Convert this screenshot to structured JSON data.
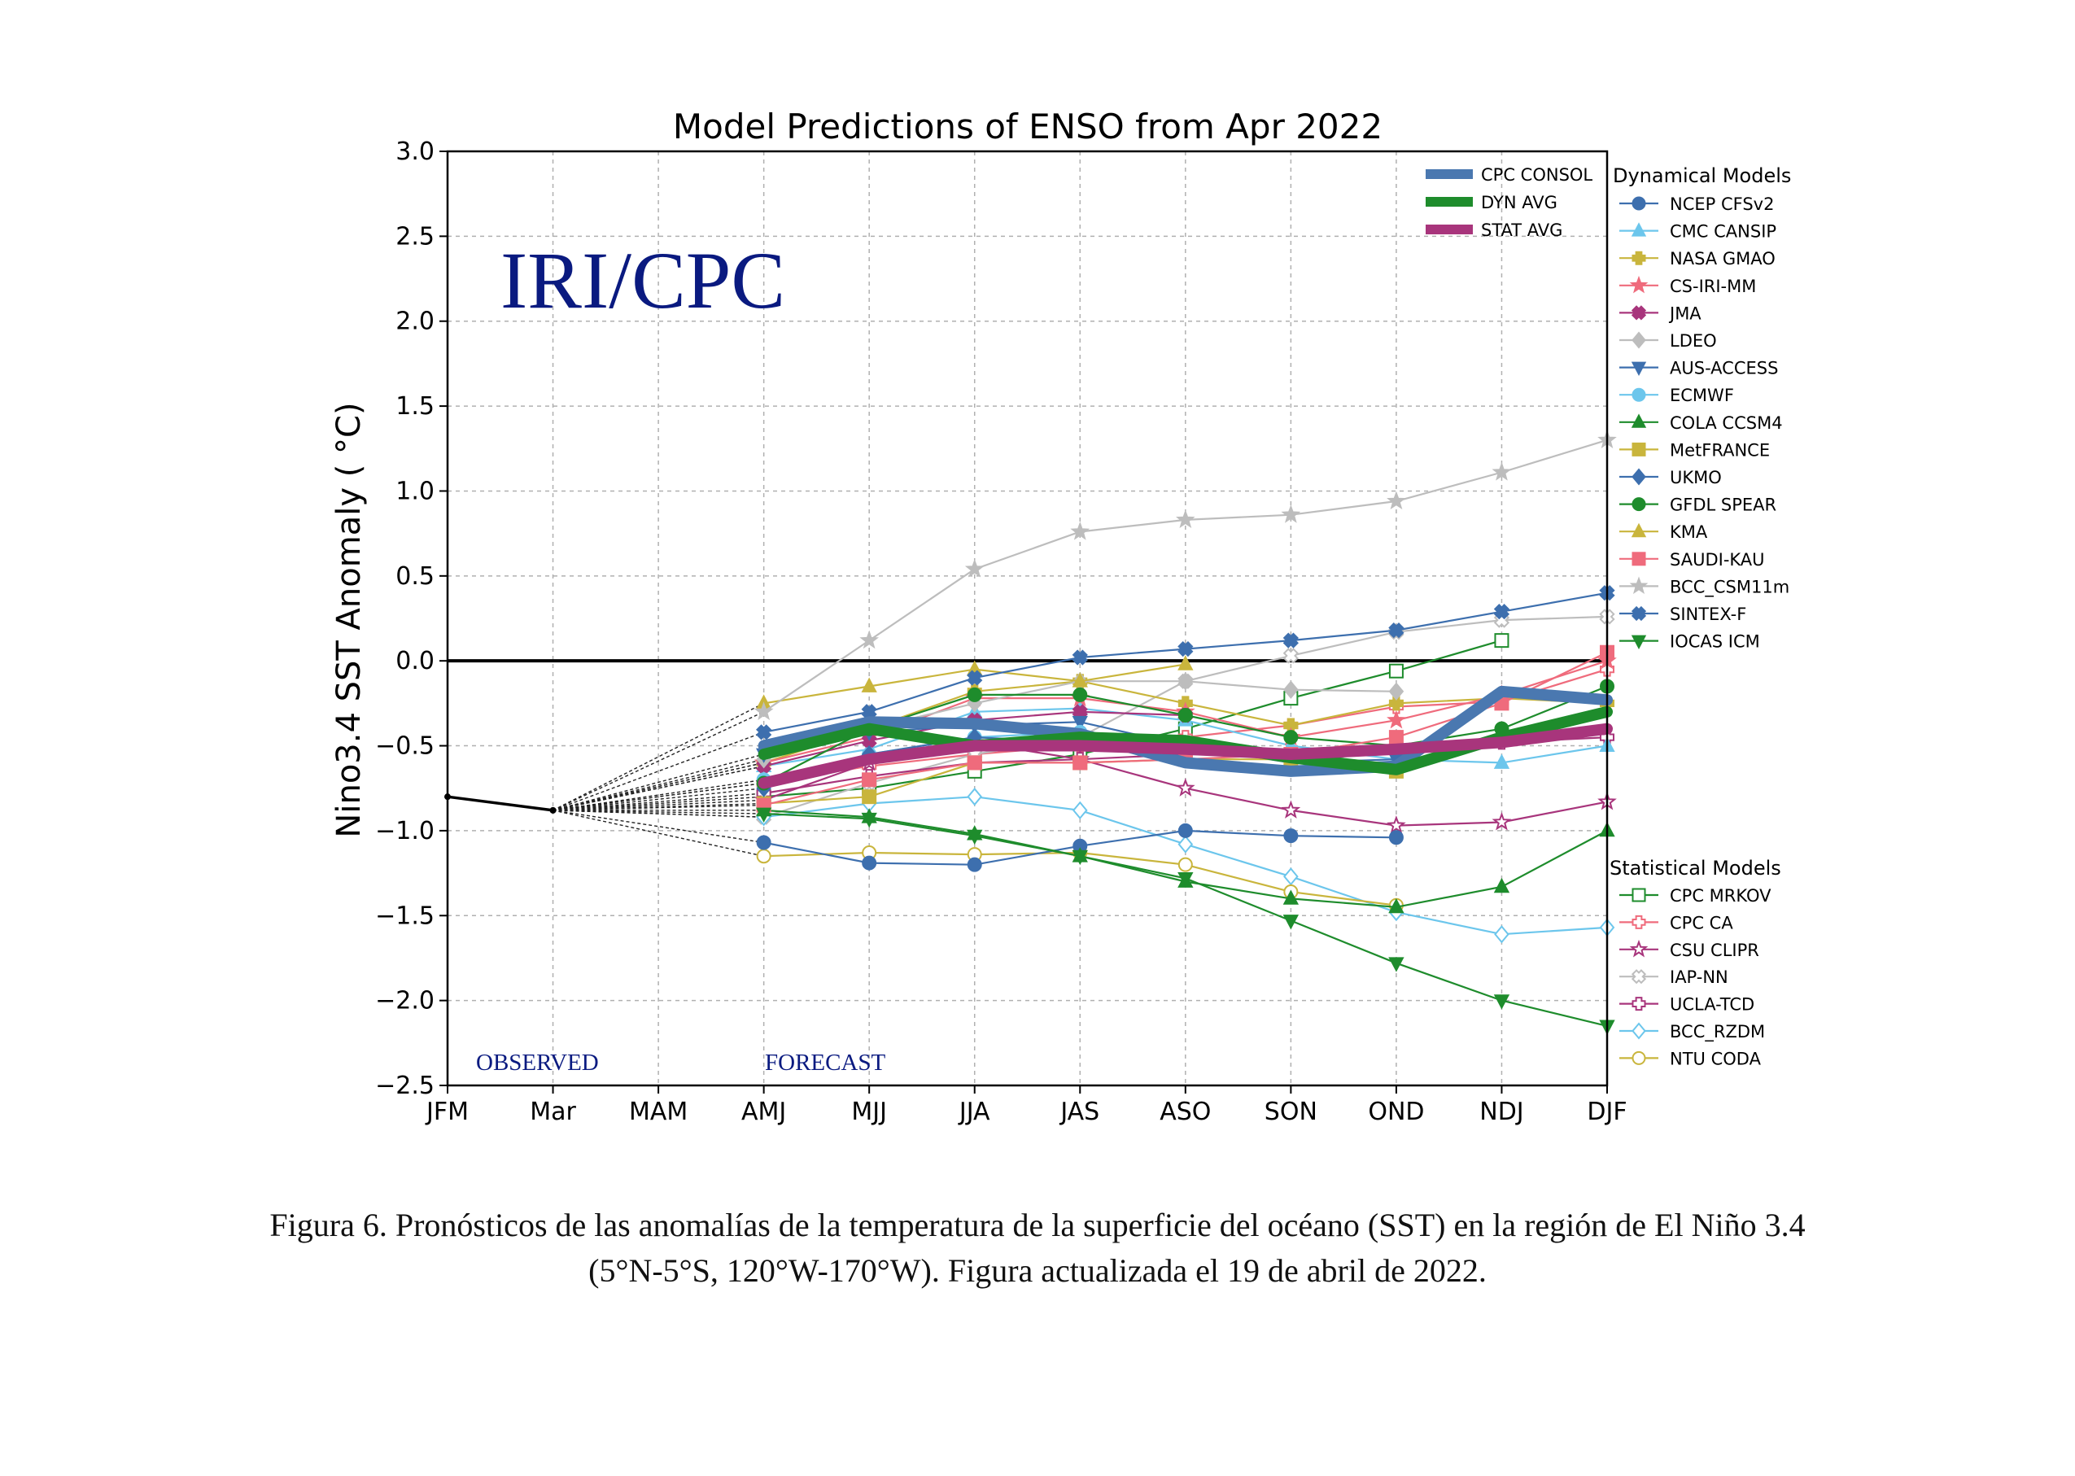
{
  "chart_data": {
    "type": "line",
    "title": "Model Predictions of ENSO from Apr 2022",
    "xlabel": "",
    "ylabel": "Nino3.4 SST Anomaly ( °C)",
    "ylim": [
      -2.5,
      3.0
    ],
    "yticks": [
      "3.0",
      "2.5",
      "2.0",
      "1.5",
      "1.0",
      "0.5",
      "0.0",
      "−0.5",
      "−1.0",
      "−1.5",
      "−2.0",
      "−2.5"
    ],
    "categories": [
      "JFM",
      "Mar",
      "MAM",
      "AMJ",
      "MJJ",
      "JJA",
      "JAS",
      "ASO",
      "SON",
      "OND",
      "NDJ",
      "DJF"
    ],
    "grid": true,
    "watermark": "IRI/CPC",
    "observed_label": "OBSERVED",
    "forecast_label": "FORECAST",
    "observed": [
      -0.8,
      -0.88
    ],
    "averages": [
      {
        "name": "CPC CONSOL",
        "color": "#4a78b0",
        "values": [
          -0.5,
          -0.36,
          -0.37,
          -0.43,
          -0.6,
          -0.65,
          -0.62,
          -0.18,
          -0.23
        ]
      },
      {
        "name": "DYN AVG",
        "color": "#1e8c2c",
        "values": [
          -0.55,
          -0.4,
          -0.5,
          -0.45,
          -0.47,
          -0.57,
          -0.64,
          -0.45,
          -0.3
        ]
      },
      {
        "name": "STAT AVG",
        "color": "#a8357c",
        "values": [
          -0.72,
          -0.58,
          -0.5,
          -0.5,
          -0.52,
          -0.55,
          -0.52,
          -0.48,
          -0.4
        ]
      }
    ],
    "dynamical_title": "Dynamical Models",
    "dynamical": [
      {
        "name": "NCEP CFSv2",
        "color": "#3d6fae",
        "marker": "circle",
        "values": [
          -1.07,
          -1.19,
          -1.2,
          -1.09,
          -1.0,
          -1.03,
          -1.04
        ]
      },
      {
        "name": "CMC CANSIP",
        "color": "#6cc6ec",
        "marker": "triangle-up",
        "values": [
          -0.62,
          -0.52,
          -0.3,
          -0.28,
          -0.35,
          -0.5,
          -0.58,
          -0.6,
          -0.5
        ]
      },
      {
        "name": "NASA GMAO",
        "color": "#c9b53c",
        "marker": "plus",
        "values": [
          -0.6,
          -0.4,
          -0.18,
          -0.12,
          -0.25,
          -0.38,
          -0.25,
          -0.22,
          -0.25
        ]
      },
      {
        "name": "CS-IRI-MM",
        "color": "#ef6b7c",
        "marker": "star",
        "values": [
          -0.6,
          -0.45,
          -0.22,
          -0.22,
          -0.3,
          -0.45,
          -0.35,
          -0.2,
          0.0
        ]
      },
      {
        "name": "JMA",
        "color": "#a8357c",
        "marker": "x",
        "values": [
          -0.62,
          -0.47,
          -0.35,
          -0.3,
          -0.32
        ]
      },
      {
        "name": "LDEO",
        "color": "#bdbdbd",
        "marker": "diamond",
        "values": [
          -0.58,
          -0.4,
          -0.25,
          -0.12,
          -0.12,
          -0.17,
          -0.18
        ]
      },
      {
        "name": "AUS-ACCESS",
        "color": "#3d6fae",
        "marker": "triangle-down",
        "values": [
          -0.55,
          -0.42,
          -0.38,
          -0.36,
          -0.5,
          -0.6,
          -0.58
        ]
      },
      {
        "name": "ECMWF",
        "color": "#6cc6ec",
        "marker": "circle",
        "values": [
          -0.7,
          -0.55,
          -0.45,
          -0.42,
          -0.48
        ]
      },
      {
        "name": "COLA CCSM4",
        "color": "#1e8c2c",
        "marker": "triangle-up",
        "values": [
          -0.88,
          -0.92,
          -1.02,
          -1.15,
          -1.3,
          -1.4,
          -1.45,
          -1.33,
          -1.0
        ]
      },
      {
        "name": "MetFRANCE",
        "color": "#c9b53c",
        "marker": "square",
        "values": [
          -0.84,
          -0.8,
          -0.6,
          -0.6,
          -0.58,
          -0.58,
          -0.65
        ]
      },
      {
        "name": "UKMO",
        "color": "#3d6fae",
        "marker": "diamond",
        "values": [
          -0.75,
          -0.55,
          -0.45,
          -0.48,
          -0.58
        ]
      },
      {
        "name": "GFDL SPEAR",
        "color": "#1e8c2c",
        "marker": "circle",
        "values": [
          -0.72,
          -0.4,
          -0.2,
          -0.2,
          -0.32,
          -0.45,
          -0.5,
          -0.4,
          -0.15
        ]
      },
      {
        "name": "KMA",
        "color": "#c9b53c",
        "marker": "triangle-up",
        "values": [
          -0.25,
          -0.15,
          -0.05,
          -0.12,
          -0.02
        ]
      },
      {
        "name": "SAUDI-KAU",
        "color": "#ef6b7c",
        "marker": "square",
        "values": [
          -0.85,
          -0.7,
          -0.6,
          -0.6,
          -0.58,
          -0.55,
          -0.45,
          -0.25,
          0.05
        ]
      },
      {
        "name": "BCC_CSM11m",
        "color": "#bdbdbd",
        "marker": "star",
        "values": [
          -0.3,
          0.12,
          0.54,
          0.76,
          0.83,
          0.86,
          0.94,
          1.11,
          1.3
        ]
      },
      {
        "name": "SINTEX-F",
        "color": "#3d6fae",
        "marker": "x",
        "values": [
          -0.42,
          -0.3,
          -0.1,
          0.02,
          0.07,
          0.12,
          0.18,
          0.29,
          0.4
        ]
      },
      {
        "name": "IOCAS ICM",
        "color": "#1e8c2c",
        "marker": "triangle-down",
        "values": [
          -0.9,
          -0.93,
          -1.03,
          -1.15,
          -1.28,
          -1.53,
          -1.78,
          -2.0,
          -2.15
        ]
      }
    ],
    "statistical_title": "Statistical Models",
    "statistical": [
      {
        "name": "CPC MRKOV",
        "color": "#1e8c2c",
        "marker": "open-square",
        "values": [
          -0.8,
          -0.75,
          -0.65,
          -0.55,
          -0.4,
          -0.22,
          -0.06,
          0.12
        ]
      },
      {
        "name": "CPC CA",
        "color": "#ef6b7c",
        "marker": "open-plus",
        "values": [
          -0.72,
          -0.62,
          -0.55,
          -0.5,
          -0.45,
          -0.38,
          -0.27,
          -0.24,
          -0.05
        ]
      },
      {
        "name": "CSU CLIPR",
        "color": "#a8357c",
        "marker": "open-star",
        "values": [
          -0.82,
          -0.6,
          -0.48,
          -0.58,
          -0.75,
          -0.88,
          -0.97,
          -0.95,
          -0.83
        ]
      },
      {
        "name": "IAP-NN",
        "color": "#bdbdbd",
        "marker": "open-x",
        "values": [
          -0.92,
          -0.72,
          -0.55,
          -0.45,
          -0.12,
          0.03,
          0.17,
          0.24,
          0.26
        ]
      },
      {
        "name": "UCLA-TCD",
        "color": "#a8357c",
        "marker": "open-plus",
        "values": [
          -0.78,
          -0.68,
          -0.6,
          -0.58,
          -0.55,
          -0.55,
          -0.52,
          -0.48,
          -0.45
        ]
      },
      {
        "name": "BCC_RZDM",
        "color": "#6cc6ec",
        "marker": "open-diamond",
        "values": [
          -0.92,
          -0.84,
          -0.8,
          -0.88,
          -1.08,
          -1.27,
          -1.48,
          -1.61,
          -1.57
        ]
      },
      {
        "name": "NTU CODA",
        "color": "#c9b53c",
        "marker": "open-circle",
        "values": [
          -1.15,
          -1.13,
          -1.14,
          -1.13,
          -1.2,
          -1.36,
          -1.44
        ]
      }
    ]
  },
  "caption": {
    "line1": "Figura 6. Pronósticos de las anomalías de la temperatura de la superficie del océano (SST) en la región de El Niño 3.4",
    "line2": "(5°N-5°S, 120°W-170°W). Figura actualizada el 19 de abril de 2022."
  }
}
